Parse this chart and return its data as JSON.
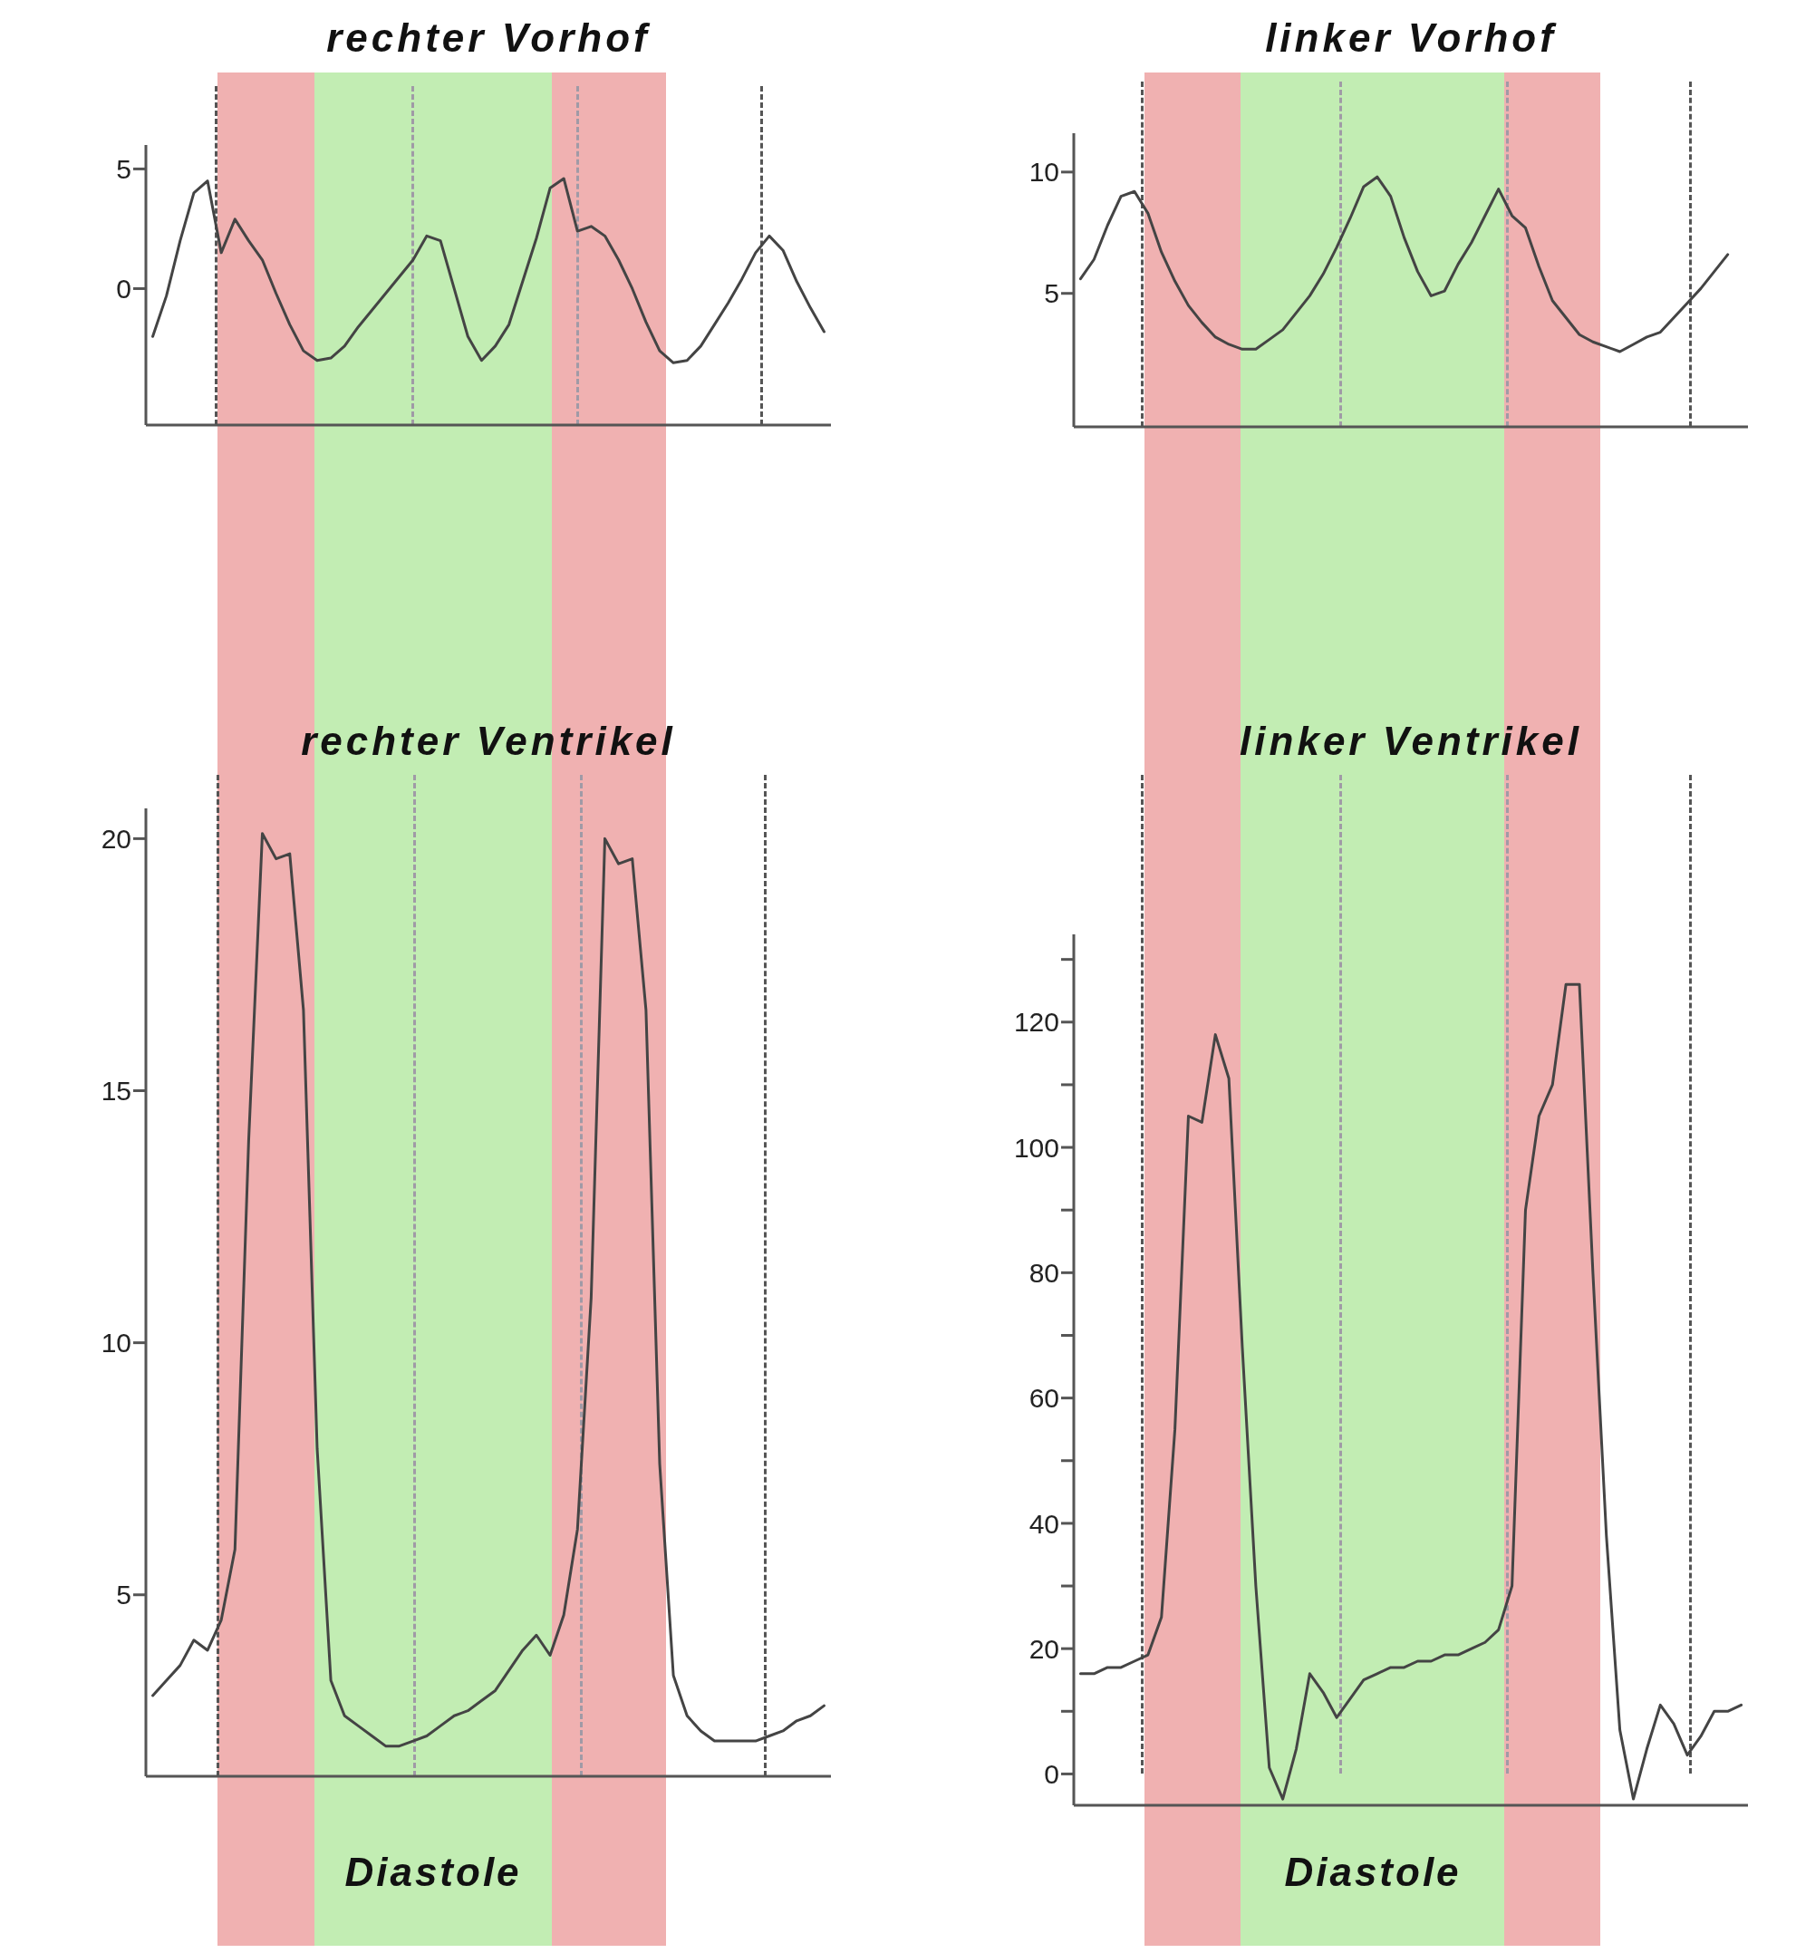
{
  "chart_data": [
    {
      "type": "line",
      "title": "rechter Vorhof",
      "color": "#444444",
      "marker": "none",
      "grid": false,
      "tick_labels": "y",
      "categories": [
        null,
        null,
        null,
        null,
        null,
        null,
        null,
        null,
        null,
        null,
        null,
        null,
        null,
        null,
        null,
        null,
        null,
        null,
        null,
        null,
        null,
        null,
        null,
        null,
        null,
        null,
        null,
        null,
        null,
        null,
        null,
        null,
        null,
        null,
        null,
        null,
        null,
        null,
        null,
        null,
        null,
        null,
        null,
        null,
        null,
        null,
        null,
        null,
        null,
        null
      ],
      "values": [
        -2.0,
        -0.3,
        2.0,
        4.0,
        4.5,
        1.5,
        2.9,
        2.0,
        1.2,
        -0.2,
        -1.5,
        -2.6,
        -3.0,
        -2.9,
        -2.4,
        -1.6,
        -0.9,
        -0.2,
        0.5,
        1.2,
        2.2,
        2.0,
        0.0,
        -2.0,
        -3.0,
        -2.4,
        -1.5,
        0.3,
        2.1,
        4.2,
        4.6,
        2.4,
        2.6,
        2.2,
        1.2,
        0.0,
        -1.4,
        -2.6,
        -3.1,
        -3.0,
        -2.4,
        -1.5,
        -0.6,
        0.4,
        1.5,
        2.2,
        1.6,
        0.3,
        -0.8,
        -1.8
      ],
      "ylim": [
        -5.7,
        6
      ],
      "yticks": [
        0,
        5
      ]
    },
    {
      "type": "line",
      "title": "linker Vorhof",
      "color": "#444444",
      "marker": "none",
      "grid": false,
      "tick_labels": "y",
      "categories": [
        null,
        null,
        null,
        null,
        null,
        null,
        null,
        null,
        null,
        null,
        null,
        null,
        null,
        null,
        null,
        null,
        null,
        null,
        null,
        null,
        null,
        null,
        null,
        null,
        null,
        null,
        null,
        null,
        null,
        null,
        null,
        null,
        null,
        null,
        null,
        null,
        null,
        null,
        null,
        null,
        null,
        null,
        null,
        null,
        null,
        null,
        null,
        null,
        null,
        null
      ],
      "values": [
        5.6,
        6.4,
        7.8,
        9.0,
        9.2,
        8.3,
        6.7,
        5.5,
        4.5,
        3.8,
        3.2,
        2.9,
        2.7,
        2.7,
        3.1,
        3.5,
        4.2,
        4.9,
        5.8,
        6.9,
        8.1,
        9.4,
        9.8,
        9.0,
        7.3,
        5.9,
        4.9,
        5.1,
        6.2,
        7.1,
        8.2,
        9.3,
        8.2,
        7.7,
        6.1,
        4.7,
        4.0,
        3.3,
        3.0,
        2.8,
        2.6,
        2.9,
        3.2,
        3.4,
        4.0,
        4.6,
        5.2,
        5.9,
        6.6,
        null
      ],
      "ylim": [
        -0.5,
        11.6
      ],
      "yticks": [
        5,
        10
      ]
    },
    {
      "type": "line",
      "title": "rechter Ventrikel",
      "color": "#444444",
      "marker": "none",
      "grid": false,
      "tick_labels": "y",
      "categories": [
        null,
        null,
        null,
        null,
        null,
        null,
        null,
        null,
        null,
        null,
        null,
        null,
        null,
        null,
        null,
        null,
        null,
        null,
        null,
        null,
        null,
        null,
        null,
        null,
        null,
        null,
        null,
        null,
        null,
        null,
        null,
        null,
        null,
        null,
        null,
        null,
        null,
        null,
        null,
        null,
        null,
        null,
        null,
        null,
        null,
        null,
        null,
        null,
        null,
        null
      ],
      "values": [
        3.0,
        3.3,
        3.6,
        4.1,
        3.9,
        4.5,
        5.9,
        14.0,
        20.1,
        19.6,
        19.7,
        16.6,
        7.9,
        3.3,
        2.6,
        2.4,
        2.2,
        2.0,
        2.0,
        2.1,
        2.2,
        2.4,
        2.6,
        2.7,
        2.9,
        3.1,
        3.5,
        3.9,
        4.2,
        3.8,
        4.6,
        6.3,
        10.9,
        20.0,
        19.5,
        19.6,
        16.6,
        7.6,
        3.4,
        2.6,
        2.3,
        2.1,
        2.1,
        2.1,
        2.1,
        2.2,
        2.3,
        2.5,
        2.6,
        2.8
      ],
      "ylim": [
        1.4,
        20.6
      ],
      "yticks": [
        5,
        10,
        15,
        20
      ],
      "annotations": [
        "Diastole"
      ]
    },
    {
      "type": "line",
      "title": "linker Ventrikel",
      "color": "#444444",
      "marker": "none",
      "grid": false,
      "tick_labels": "y",
      "categories": [
        null,
        null,
        null,
        null,
        null,
        null,
        null,
        null,
        null,
        null,
        null,
        null,
        null,
        null,
        null,
        null,
        null,
        null,
        null,
        null,
        null,
        null,
        null,
        null,
        null,
        null,
        null,
        null,
        null,
        null,
        null,
        null,
        null,
        null,
        null,
        null,
        null,
        null,
        null,
        null,
        null,
        null,
        null,
        null,
        null,
        null,
        null,
        null,
        null,
        null
      ],
      "values": [
        16,
        16,
        17,
        17,
        18,
        19,
        25,
        55,
        105,
        104,
        118,
        111,
        68,
        30,
        1,
        -4,
        4,
        16,
        13,
        9,
        12,
        15,
        16,
        17,
        17,
        18,
        18,
        19,
        19,
        20,
        21,
        23,
        30,
        90,
        105,
        110,
        126,
        126,
        80,
        38,
        7,
        -4,
        4,
        11,
        8,
        3,
        6,
        10,
        10,
        11
      ],
      "ylim": [
        -5,
        134
      ],
      "yticks": [
        0,
        {
          "value": 10,
          "label": null
        },
        20,
        {
          "value": 30,
          "label": null
        },
        40,
        {
          "value": 50,
          "label": null
        },
        60,
        {
          "value": 70,
          "label": null
        },
        80,
        {
          "value": 90,
          "label": null
        },
        100,
        {
          "value": 110,
          "label": null
        },
        120,
        {
          "value": 130,
          "label": null
        }
      ],
      "annotations": [
        "Diastole"
      ]
    }
  ]
}
